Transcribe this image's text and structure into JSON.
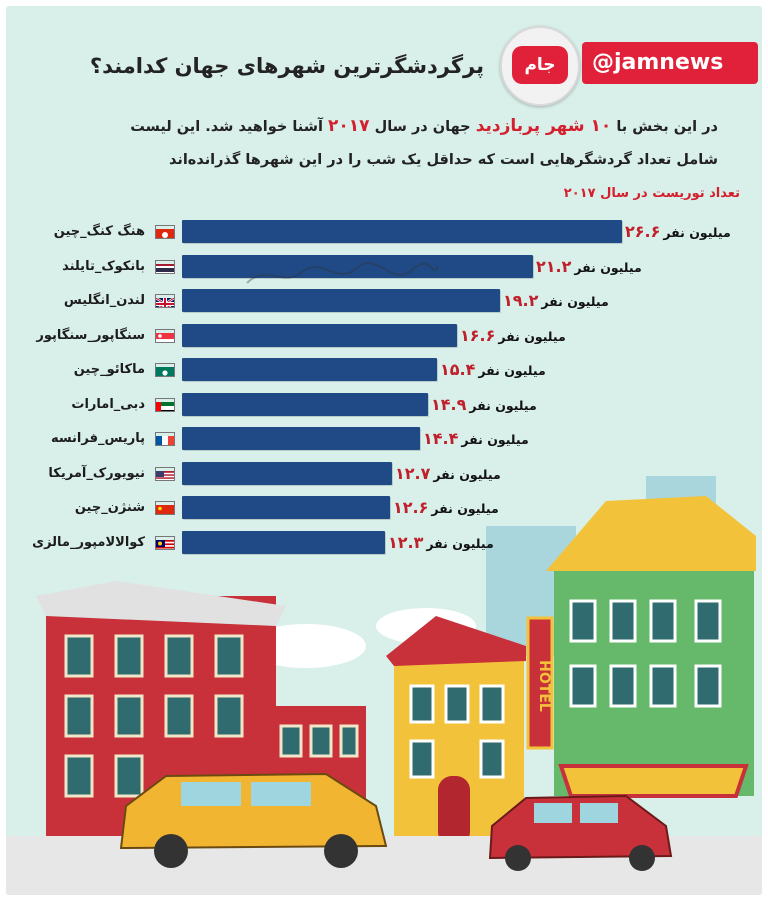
{
  "title": "پرگردشگرترین شهرهای جهان کدامند؟",
  "brand": {
    "logo_text": "جام",
    "handle": "@jamnews"
  },
  "intro": {
    "line1_a": "در این بخش با",
    "line1_hl": "۱۰ شهر پربازدید",
    "line1_b": "جهان در سال",
    "line1_year": "۲۰۱۷",
    "line1_c": "آشنا خواهید شد. این لیست",
    "line2": "شامل تعداد گردشگرهایی است که حداقل یک شب را در این شهرها گذرانده‌اند"
  },
  "colors": {
    "accent": "#d4202e",
    "bar": "#204a86",
    "background": "#d9efe9"
  },
  "chart_data": {
    "type": "bar",
    "orientation": "horizontal",
    "title": "تعداد توریست در سال ۲۰۱۷",
    "unit": "میلیون نفر",
    "xlim": [
      0,
      26.6
    ],
    "categories": [
      "هنگ کنگ_چین",
      "بانکوک_تایلند",
      "لندن_انگلیس",
      "سنگاپور_سنگاپور",
      "ماکائو_چین",
      "دبی_امارات",
      "پاریس_فرانسه",
      "نیویورک_آمریکا",
      "شنژن_چین",
      "کوالالامپور_مالزی"
    ],
    "values": [
      26.6,
      21.2,
      19.2,
      16.6,
      15.4,
      14.9,
      14.4,
      12.7,
      12.6,
      12.3
    ],
    "value_labels": [
      "۲۶.۶",
      "۲۱.۲",
      "۱۹.۲",
      "۱۶.۶",
      "۱۵.۴",
      "۱۴.۹",
      "۱۴.۴",
      "۱۲.۷",
      "۱۲.۶",
      "۱۲.۳"
    ],
    "flags": [
      "hongkong-flag",
      "thailand-flag",
      "uk-flag",
      "singapore-flag",
      "macau-flag",
      "uae-flag",
      "france-flag",
      "usa-flag",
      "china-flag",
      "malaysia-flag"
    ]
  },
  "scene": {
    "hotel_sign": "HOTEL"
  }
}
